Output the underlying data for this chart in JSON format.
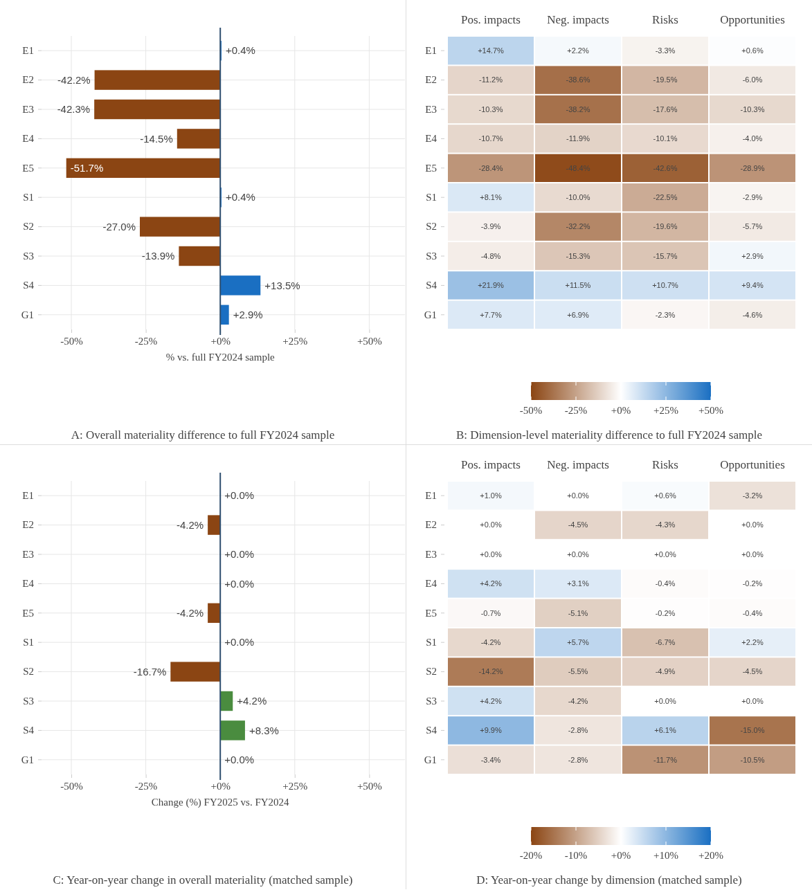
{
  "chart_data": [
    {
      "type": "bar",
      "orientation": "horizontal",
      "title": "A: Overall materiality difference to full FY2024 sample",
      "xlabel": "% vs. full FY2024 sample",
      "categories": [
        "E1",
        "E2",
        "E3",
        "E4",
        "E5",
        "S1",
        "S2",
        "S3",
        "S4",
        "G1"
      ],
      "values": [
        0.4,
        -42.2,
        -42.3,
        -14.5,
        -51.7,
        0.4,
        -27.0,
        -13.9,
        13.5,
        2.9
      ],
      "colors": [
        "#1a6fc2",
        "#8b4513",
        "#8b4513",
        "#8b4513",
        "#8b4513",
        "#1a6fc2",
        "#8b4513",
        "#8b4513",
        "#1a6fc2",
        "#1a6fc2"
      ],
      "value_labels": [
        "+0.4%",
        "-42.2%",
        "-42.3%",
        "-14.5%",
        "-51.7%",
        "+0.4%",
        "-27.0%",
        "-13.9%",
        "+13.5%",
        "+2.9%"
      ],
      "xlim": [
        -60,
        62
      ],
      "xticks": [
        {
          "value": -50,
          "label": "-50%"
        },
        {
          "value": -25,
          "label": "-25%"
        },
        {
          "value": 0,
          "label": "+0%"
        },
        {
          "value": 25,
          "label": "+25%"
        },
        {
          "value": 50,
          "label": "+50%"
        }
      ],
      "grid": true,
      "ref_lines": [
        {
          "axis": "x",
          "value": 0,
          "color": "#2f4f6f"
        }
      ]
    },
    {
      "type": "heatmap",
      "title": "B: Dimension-level materiality difference to full FY2024 sample",
      "categories": [
        "Pos. impacts",
        "Neg. impacts",
        "Risks",
        "Opportunities"
      ],
      "y_categories": [
        "E1",
        "E2",
        "E3",
        "E4",
        "E5",
        "S1",
        "S2",
        "S3",
        "S4",
        "G1"
      ],
      "cells": [
        [
          14.7,
          2.2,
          -3.3,
          0.6
        ],
        [
          -11.2,
          -38.6,
          -19.5,
          -6.0
        ],
        [
          -10.3,
          -38.2,
          -17.6,
          -10.3
        ],
        [
          -10.7,
          -11.9,
          -10.1,
          -4.0
        ],
        [
          -28.4,
          -48.4,
          -42.6,
          -28.9
        ],
        [
          8.1,
          -10.0,
          -22.5,
          -2.9
        ],
        [
          -3.9,
          -32.2,
          -19.6,
          -5.7
        ],
        [
          -4.8,
          -15.3,
          -15.7,
          2.9
        ],
        [
          21.9,
          11.5,
          10.7,
          9.4
        ],
        [
          7.7,
          6.9,
          -2.3,
          -4.6
        ]
      ],
      "cell_labels": [
        [
          "+14.7%",
          "+2.2%",
          "-3.3%",
          "+0.6%"
        ],
        [
          "-11.2%",
          "-38.6%",
          "-19.5%",
          "-6.0%"
        ],
        [
          "-10.3%",
          "-38.2%",
          "-17.6%",
          "-10.3%"
        ],
        [
          "-10.7%",
          "-11.9%",
          "-10.1%",
          "-4.0%"
        ],
        [
          "-28.4%",
          "-48.4%",
          "-42.6%",
          "-28.9%"
        ],
        [
          "+8.1%",
          "-10.0%",
          "-22.5%",
          "-2.9%"
        ],
        [
          "-3.9%",
          "-32.2%",
          "-19.6%",
          "-5.7%"
        ],
        [
          "-4.8%",
          "-15.3%",
          "-15.7%",
          "+2.9%"
        ],
        [
          "+21.9%",
          "+11.5%",
          "+10.7%",
          "+9.4%"
        ],
        [
          "+7.7%",
          "+6.9%",
          "-2.3%",
          "-4.6%"
        ]
      ],
      "clim": [
        -50,
        50
      ],
      "cticks": [
        {
          "value": -50,
          "label": "-50%"
        },
        {
          "value": -25,
          "label": "-25%"
        },
        {
          "value": 0,
          "label": "+0%"
        },
        {
          "value": 25,
          "label": "+25%"
        },
        {
          "value": 50,
          "label": "+50%"
        }
      ],
      "colors": [
        "#8b4513",
        "#ffffff",
        "#1a6fc2"
      ]
    },
    {
      "type": "bar",
      "orientation": "horizontal",
      "title": "C: Year-on-year change in overall materiality (matched sample)",
      "xlabel": "Change (%) FY2025 vs. FY2024",
      "categories": [
        "E1",
        "E2",
        "E3",
        "E4",
        "E5",
        "S1",
        "S2",
        "S3",
        "S4",
        "G1"
      ],
      "values": [
        0.0,
        -4.2,
        0.0,
        0.0,
        -4.2,
        0.0,
        -16.7,
        4.2,
        8.3,
        0.0
      ],
      "colors": [
        "#4a8c3f",
        "#8b4513",
        "#4a8c3f",
        "#4a8c3f",
        "#8b4513",
        "#4a8c3f",
        "#8b4513",
        "#4a8c3f",
        "#4a8c3f",
        "#4a8c3f"
      ],
      "value_labels": [
        "+0.0%",
        "-4.2%",
        "+0.0%",
        "+0.0%",
        "-4.2%",
        "+0.0%",
        "-16.7%",
        "+4.2%",
        "+8.3%",
        "+0.0%"
      ],
      "xlim": [
        -60,
        62
      ],
      "xticks": [
        {
          "value": -50,
          "label": "-50%"
        },
        {
          "value": -25,
          "label": "-25%"
        },
        {
          "value": 0,
          "label": "+0%"
        },
        {
          "value": 25,
          "label": "+25%"
        },
        {
          "value": 50,
          "label": "+50%"
        }
      ],
      "grid": true,
      "ref_lines": [
        {
          "axis": "x",
          "value": 0,
          "color": "#2f4f6f"
        }
      ]
    },
    {
      "type": "heatmap",
      "title": "D: Year-on-year change by dimension (matched sample)",
      "categories": [
        "Pos. impacts",
        "Neg. impacts",
        "Risks",
        "Opportunities"
      ],
      "y_categories": [
        "E1",
        "E2",
        "E3",
        "E4",
        "E5",
        "S1",
        "S2",
        "S3",
        "S4",
        "G1"
      ],
      "cells": [
        [
          1.0,
          0.0,
          0.6,
          -3.2
        ],
        [
          0.0,
          -4.5,
          -4.3,
          0.0
        ],
        [
          0.0,
          0.0,
          0.0,
          0.0
        ],
        [
          4.2,
          3.1,
          -0.4,
          -0.2
        ],
        [
          -0.7,
          -5.1,
          -0.2,
          -0.4
        ],
        [
          -4.2,
          5.7,
          -6.7,
          2.2
        ],
        [
          -14.2,
          -5.5,
          -4.9,
          -4.5
        ],
        [
          4.2,
          -4.2,
          0.0,
          0.0
        ],
        [
          9.9,
          -2.8,
          6.1,
          -15.0
        ],
        [
          -3.4,
          -2.8,
          -11.7,
          -10.5
        ]
      ],
      "cell_labels": [
        [
          "+1.0%",
          "+0.0%",
          "+0.6%",
          "-3.2%"
        ],
        [
          "+0.0%",
          "-4.5%",
          "-4.3%",
          "+0.0%"
        ],
        [
          "+0.0%",
          "+0.0%",
          "+0.0%",
          "+0.0%"
        ],
        [
          "+4.2%",
          "+3.1%",
          "-0.4%",
          "-0.2%"
        ],
        [
          "-0.7%",
          "-5.1%",
          "-0.2%",
          "-0.4%"
        ],
        [
          "-4.2%",
          "+5.7%",
          "-6.7%",
          "+2.2%"
        ],
        [
          "-14.2%",
          "-5.5%",
          "-4.9%",
          "-4.5%"
        ],
        [
          "+4.2%",
          "-4.2%",
          "+0.0%",
          "+0.0%"
        ],
        [
          "+9.9%",
          "-2.8%",
          "+6.1%",
          "-15.0%"
        ],
        [
          "-3.4%",
          "-2.8%",
          "-11.7%",
          "-10.5%"
        ]
      ],
      "clim": [
        -20,
        20
      ],
      "cticks": [
        {
          "value": -20,
          "label": "-20%"
        },
        {
          "value": -10,
          "label": "-10%"
        },
        {
          "value": 0,
          "label": "+0%"
        },
        {
          "value": 10,
          "label": "+10%"
        },
        {
          "value": 20,
          "label": "+20%"
        }
      ],
      "colors": [
        "#8b4513",
        "#ffffff",
        "#1a6fc2"
      ]
    }
  ]
}
